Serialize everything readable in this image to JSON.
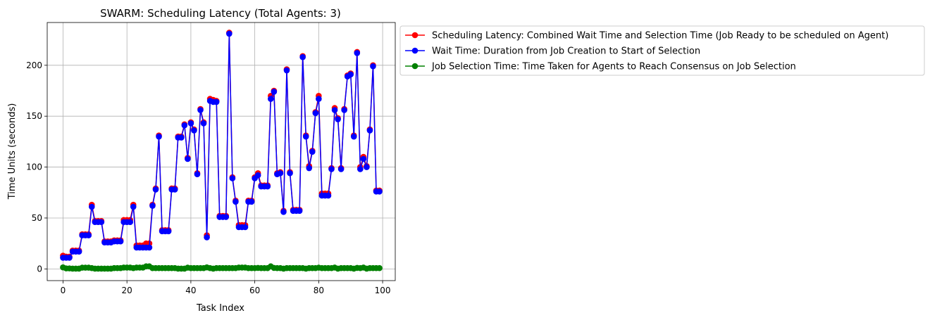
{
  "chart_data": {
    "type": "line",
    "title": "SWARM: Scheduling Latency (Total Agents: 3)",
    "xlabel": "Task Index",
    "ylabel": "Time Units (seconds)",
    "xlim": [
      -4.95,
      103.95
    ],
    "ylim": [
      -11.5,
      242
    ],
    "xticks": [
      0,
      20,
      40,
      60,
      80,
      100
    ],
    "yticks": [
      0,
      50,
      100,
      150,
      200
    ],
    "xtick_labels": [
      "0",
      "20",
      "40",
      "60",
      "80",
      "100"
    ],
    "ytick_labels": [
      "0",
      "50",
      "100",
      "150",
      "200"
    ],
    "grid": true,
    "legend_position": "outside-right-top",
    "x": [
      0,
      1,
      2,
      3,
      4,
      5,
      6,
      7,
      8,
      9,
      10,
      11,
      12,
      13,
      14,
      15,
      16,
      17,
      18,
      19,
      20,
      21,
      22,
      23,
      24,
      25,
      26,
      27,
      28,
      29,
      30,
      31,
      32,
      33,
      34,
      35,
      36,
      37,
      38,
      39,
      40,
      41,
      42,
      43,
      44,
      45,
      46,
      47,
      48,
      49,
      50,
      51,
      52,
      53,
      54,
      55,
      56,
      57,
      58,
      59,
      60,
      61,
      62,
      63,
      64,
      65,
      66,
      67,
      68,
      69,
      70,
      71,
      72,
      73,
      74,
      75,
      76,
      77,
      78,
      79,
      80,
      81,
      82,
      83,
      84,
      85,
      86,
      87,
      88,
      89,
      90,
      91,
      92,
      93,
      94,
      95,
      96,
      97,
      98,
      99
    ],
    "series": [
      {
        "name": "Scheduling Latency: Combined Wait Time and Selection Time (Job Ready to be scheduled on Agent)",
        "color": "#ff0000",
        "values": [
          13,
          12,
          12,
          18,
          18,
          18,
          34,
          34,
          34,
          63,
          47,
          47,
          47,
          27,
          27,
          27,
          28,
          28,
          28,
          48,
          48,
          48,
          63,
          23,
          23,
          23,
          25,
          25,
          63,
          79,
          131,
          38,
          38,
          38,
          79,
          79,
          130,
          130,
          142,
          109,
          144,
          137,
          94,
          157,
          144,
          33,
          167,
          166,
          165,
          52,
          52,
          52,
          232,
          90,
          67,
          43,
          43,
          43,
          67,
          67,
          90,
          94,
          82,
          82,
          82,
          170,
          175,
          94,
          95,
          57,
          196,
          95,
          58,
          58,
          58,
          209,
          131,
          101,
          116,
          154,
          170,
          74,
          74,
          74,
          99,
          158,
          148,
          99,
          157,
          190,
          192,
          131,
          213,
          100,
          110,
          101,
          137,
          200,
          77,
          77
        ]
      },
      {
        "name": "Wait Time: Duration from Job Creation to Start of Selection",
        "color": "#0000ff",
        "values": [
          11,
          11,
          11,
          17,
          17,
          17,
          33,
          33,
          33,
          61,
          46,
          46,
          46,
          26,
          26,
          26,
          27,
          27,
          27,
          46,
          46,
          46,
          61,
          21,
          21,
          21,
          21,
          21,
          62,
          78,
          130,
          37,
          37,
          37,
          78,
          78,
          129,
          129,
          141,
          108,
          143,
          136,
          93,
          156,
          143,
          31,
          165,
          164,
          164,
          51,
          51,
          51,
          231,
          89,
          66,
          41,
          41,
          41,
          66,
          66,
          89,
          92,
          81,
          81,
          81,
          167,
          174,
          93,
          94,
          56,
          195,
          94,
          57,
          57,
          57,
          208,
          130,
          99,
          115,
          153,
          167,
          72,
          72,
          72,
          98,
          156,
          147,
          98,
          156,
          189,
          191,
          130,
          212,
          98,
          108,
          100,
          136,
          199,
          76,
          76
        ]
      },
      {
        "name": "Job Selection Time: Time Taken for Agents to Reach Consensus on Job Selection",
        "color": "#008000",
        "values": [
          1.5,
          0.5,
          0.5,
          0.3,
          0.3,
          0.3,
          1.2,
          1.2,
          1.2,
          0.8,
          0.3,
          0.3,
          0.3,
          0.3,
          0.3,
          0.3,
          0.8,
          0.8,
          0.8,
          1.3,
          1.3,
          1.3,
          0.8,
          1.3,
          1.3,
          1.3,
          2.5,
          2.5,
          0.8,
          0.8,
          0.8,
          0.8,
          0.8,
          0.8,
          0.8,
          0.8,
          0.3,
          0.3,
          0.3,
          1.2,
          0.8,
          0.8,
          0.8,
          0.8,
          0.8,
          1.5,
          0.8,
          0.3,
          0.8,
          0.8,
          0.8,
          0.8,
          0.8,
          0.8,
          0.8,
          1.3,
          1.3,
          1.3,
          0.8,
          0.8,
          0.8,
          1.0,
          0.8,
          0.8,
          0.8,
          2.5,
          1.0,
          0.8,
          0.8,
          0.3,
          0.8,
          0.8,
          0.8,
          0.8,
          0.8,
          0.8,
          0.3,
          0.8,
          0.8,
          0.8,
          1.2,
          0.8,
          0.8,
          0.8,
          0.8,
          1.3,
          0.3,
          0.8,
          0.8,
          0.8,
          0.8,
          0.3,
          1.0,
          0.8,
          1.3,
          0.3,
          0.8,
          0.8,
          0.8,
          0.8
        ]
      }
    ]
  }
}
